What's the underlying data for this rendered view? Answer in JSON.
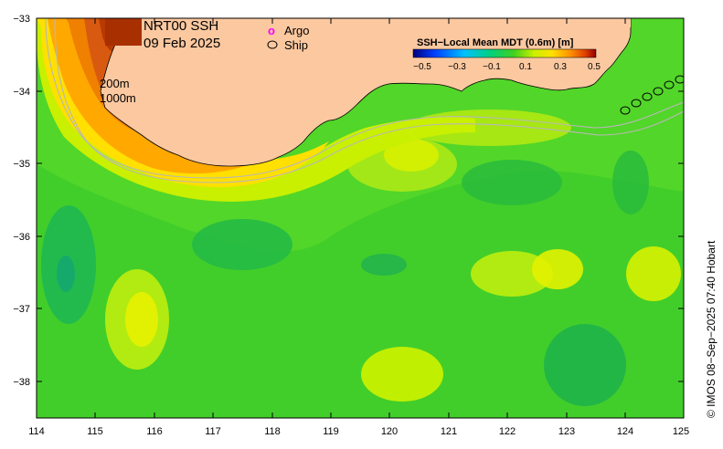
{
  "map": {
    "title_line1": "NRT00 SSH",
    "title_line2": "09 Feb 2025",
    "legend_argo": "Argo",
    "legend_ship": "Ship",
    "argo_marker": "o",
    "colorbar_title": "SSH−Local Mean MDT (0.6m) [m]",
    "colorbar_ticks": [
      "−0.5",
      "−0.3",
      "−0.1",
      "0.1",
      "0.3",
      "0.5"
    ],
    "contour_200": "200m",
    "contour_1000": "1000m",
    "credit": "© IMOS 08−Sep−2025 07:40 Hobart",
    "x_ticks": [
      "114",
      "115",
      "116",
      "117",
      "118",
      "119",
      "120",
      "121",
      "122",
      "123",
      "124",
      "125"
    ],
    "y_ticks": [
      "−33",
      "−34",
      "−35",
      "−36",
      "−37",
      "−38"
    ],
    "colors": {
      "land": "#fbc8a0",
      "ocean_base": "#52d629",
      "argo": "#ff00ff"
    }
  }
}
